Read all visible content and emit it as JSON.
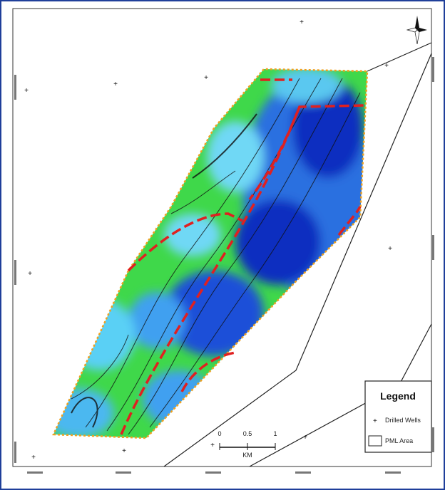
{
  "legend": {
    "title": "Legend",
    "items": [
      {
        "label": "Drilled Wells"
      },
      {
        "label": "PML Area"
      }
    ]
  },
  "scale_bar": {
    "ticks": [
      "0",
      "0.5",
      "1"
    ],
    "unit": "KM"
  }
}
